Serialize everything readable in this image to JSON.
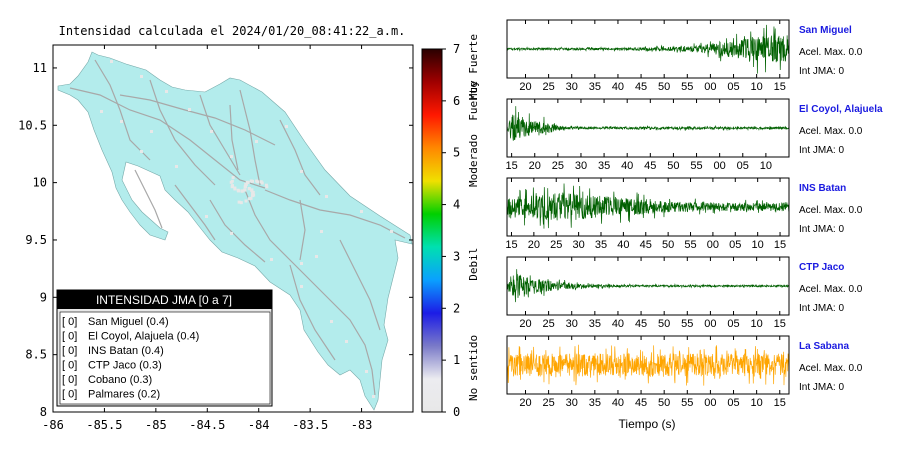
{
  "map": {
    "title": "Intensidad calculada el 2024/01/20_08:41:22_a.m.",
    "x_ticks": [
      "-86",
      "-85.5",
      "-85",
      "-84.5",
      "-84",
      "-83.5",
      "-83"
    ],
    "x_tick_values": [
      -86,
      -85.5,
      -85,
      -84.5,
      -84,
      -83.5,
      -83
    ],
    "y_ticks": [
      "8",
      "8.5",
      "9",
      "9.5",
      "10",
      "10.5",
      "11"
    ],
    "y_tick_values": [
      8,
      8.5,
      9,
      9.5,
      10,
      10.5,
      11
    ],
    "xlim": [
      -86,
      -82.5
    ],
    "ylim": [
      8,
      11.2
    ],
    "land_color": "#b3ecec",
    "road_color": "#a8a8a8",
    "legend": {
      "title": "INTENSIDAD JMA [0 a 7]",
      "rows": [
        {
          "code": "[ 0]",
          "label": "San Miguel (0.4)"
        },
        {
          "code": "[ 0]",
          "label": "El Coyol, Alajuela (0.4)"
        },
        {
          "code": "[ 0]",
          "label": "INS Batan (0.4)"
        },
        {
          "code": "[ 0]",
          "label": "CTP Jaco (0.3)"
        },
        {
          "code": "[ 0]",
          "label": "Cobano (0.3)"
        },
        {
          "code": "[ 0]",
          "label": "Palmares (0.2)"
        }
      ]
    }
  },
  "colorbar": {
    "ticks": [
      "0",
      "1",
      "2",
      "3",
      "4",
      "5",
      "6",
      "7"
    ],
    "range": [
      0,
      7
    ],
    "labels": [
      "No sentido",
      "Debil",
      "Moderado",
      "Fuerte",
      "Muy Fuerte"
    ],
    "label_values": [
      0.85,
      2.85,
      4.85,
      6.0,
      6.65
    ],
    "stops": [
      "#e8e8e8",
      "#ececf0",
      "#7a7ac8",
      "#1c1ce6",
      "#0aa0ff",
      "#00e0b0",
      "#00d000",
      "#f0e000",
      "#ff8800",
      "#ff1800",
      "#a00000",
      "#2a0000"
    ]
  },
  "chart_data": {
    "type": "line",
    "xlabel": "Tiempo (s)",
    "x_unit_note": "seconds of minute, wraps after 55 to 00",
    "series": [
      {
        "name": "San Miguel",
        "acel": "Acel. Max. 0.0",
        "jma": "Int JMA: 0",
        "color": "#006000",
        "ticks": [
          "20",
          "25",
          "30",
          "35",
          "40",
          "45",
          "50",
          "55",
          "00",
          "05",
          "10",
          "15"
        ],
        "tick_positions": [
          20,
          25,
          30,
          35,
          40,
          45,
          50,
          55,
          60,
          65,
          70,
          75
        ],
        "xlim": [
          16,
          77
        ],
        "envelope_t": [
          16,
          40,
          55,
          60,
          66,
          70,
          77
        ],
        "envelope_a": [
          0.06,
          0.07,
          0.15,
          0.35,
          0.6,
          0.9,
          0.85
        ]
      },
      {
        "name": "El Coyol, Alajuela",
        "acel": "Acel. Max. 0.0",
        "jma": "Int JMA: 0",
        "color": "#006000",
        "ticks": [
          "15",
          "20",
          "25",
          "30",
          "35",
          "40",
          "45",
          "50",
          "55",
          "00",
          "05",
          "10"
        ],
        "tick_positions": [
          15,
          20,
          25,
          30,
          35,
          40,
          45,
          50,
          55,
          60,
          65,
          70
        ],
        "xlim": [
          14,
          75
        ],
        "envelope_t": [
          14,
          15,
          17,
          22,
          26,
          30,
          52,
          58,
          75
        ],
        "envelope_a": [
          0.1,
          0.95,
          0.6,
          0.4,
          0.12,
          0.06,
          0.1,
          0.08,
          0.06
        ]
      },
      {
        "name": "INS Batan",
        "acel": "Acel. Max. 0.0",
        "jma": "Int JMA: 0",
        "color": "#006000",
        "ticks": [
          "15",
          "20",
          "25",
          "30",
          "35",
          "40",
          "45",
          "50",
          "55",
          "00",
          "05",
          "10",
          "15"
        ],
        "tick_positions": [
          15,
          20,
          25,
          30,
          35,
          40,
          45,
          50,
          55,
          60,
          65,
          70,
          75
        ],
        "xlim": [
          14,
          77
        ],
        "envelope_t": [
          14,
          20,
          27,
          32,
          40,
          48,
          58,
          66,
          77
        ],
        "envelope_a": [
          0.5,
          0.75,
          0.95,
          0.8,
          0.6,
          0.4,
          0.28,
          0.25,
          0.3
        ]
      },
      {
        "name": "CTP Jaco",
        "acel": "Acel. Max. 0.0",
        "jma": "Int JMA: 0",
        "color": "#006000",
        "ticks": [
          "20",
          "25",
          "30",
          "35",
          "40",
          "45",
          "50",
          "55",
          "00",
          "05",
          "10",
          "15"
        ],
        "tick_positions": [
          20,
          25,
          30,
          35,
          40,
          45,
          50,
          55,
          60,
          65,
          70,
          75
        ],
        "xlim": [
          16,
          77
        ],
        "envelope_t": [
          16,
          17,
          20,
          26,
          32,
          45,
          77
        ],
        "envelope_a": [
          0.1,
          0.95,
          0.6,
          0.3,
          0.12,
          0.06,
          0.05
        ]
      },
      {
        "name": "La Sabana",
        "acel": "Acel. Max. 0.0",
        "jma": "Int JMA: 0",
        "color": "#ffa500",
        "ticks": [
          "20",
          "25",
          "30",
          "35",
          "40",
          "45",
          "50",
          "55",
          "00",
          "05",
          "10",
          "15"
        ],
        "tick_positions": [
          20,
          25,
          30,
          35,
          40,
          45,
          50,
          55,
          60,
          65,
          70,
          75
        ],
        "xlim": [
          16,
          77
        ],
        "envelope_t": [
          16,
          77
        ],
        "envelope_a": [
          0.75,
          0.75
        ]
      }
    ]
  }
}
